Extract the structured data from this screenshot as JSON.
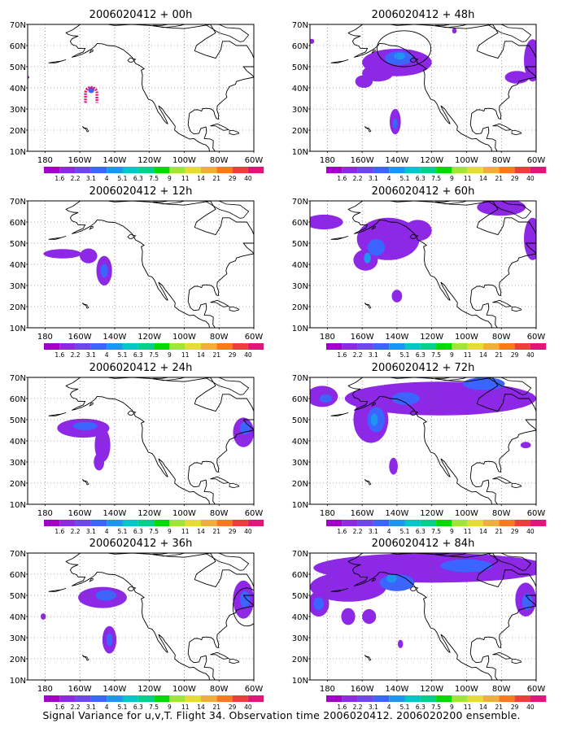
{
  "caption": "Signal Variance for u,v,T. Flight 34. Observation time 2006020412. 2006020200 ensemble.",
  "chart_data": {
    "type": "heatmap",
    "x_ticks": [
      "180",
      "160W",
      "140W",
      "120W",
      "100W",
      "80W",
      "60W"
    ],
    "y_ticks": [
      "10N",
      "20N",
      "30N",
      "40N",
      "50N",
      "60N",
      "70N"
    ],
    "xlim": [
      -190,
      -60
    ],
    "ylim": [
      10,
      70
    ],
    "grid": true,
    "legend_levels": [
      "1.6",
      "2.2",
      "3.1",
      "4",
      "5.1",
      "6.3",
      "7.5",
      "9",
      "11",
      "14",
      "21",
      "29",
      "40"
    ],
    "legend_colors": [
      "#a000c8",
      "#8c28e6",
      "#6e46f0",
      "#3c64ff",
      "#1e96f0",
      "#00c8c8",
      "#00d28c",
      "#00dc00",
      "#a0e632",
      "#e6dc32",
      "#f0af3c",
      "#fa7820",
      "#f03c3c",
      "#e6147a"
    ],
    "panels": [
      {
        "title": "2006020412 + 00h",
        "blobs": [
          {
            "lon": -190.5,
            "lat": 45,
            "rlon": 1.5,
            "rlat": 0.8,
            "level": 1
          },
          {
            "lon": -153.5,
            "lat": 39,
            "rlon": 1.8,
            "rlat": 1.5,
            "level": 3
          }
        ],
        "marks": [
          {
            "type": "ring",
            "lon": -153.5,
            "lat": 36,
            "color": "#e6147a"
          }
        ]
      },
      {
        "title": "2006020412 + 48h",
        "blobs": [
          {
            "lon": -140,
            "lat": 52,
            "rlon": 20,
            "rlat": 6.5,
            "level": 1
          },
          {
            "lon": -151,
            "lat": 47,
            "rlon": 9,
            "rlat": 4,
            "level": 1
          },
          {
            "lon": -159,
            "lat": 43,
            "rlon": 5,
            "rlat": 3,
            "level": 1
          },
          {
            "lon": -139,
            "lat": 54,
            "rlon": 8,
            "rlat": 3.3,
            "level": 3
          },
          {
            "lon": -138.5,
            "lat": 55,
            "rlon": 3.2,
            "rlat": 1.6,
            "level": 4
          },
          {
            "lon": -141,
            "lat": 24,
            "rlon": 3.2,
            "rlat": 6,
            "level": 1
          },
          {
            "lon": -141,
            "lat": 23,
            "rlon": 1.5,
            "rlat": 2.5,
            "level": 3
          },
          {
            "lon": -62,
            "lat": 53,
            "rlon": 5,
            "rlat": 10,
            "level": 1
          },
          {
            "lon": -71,
            "lat": 45,
            "rlon": 7,
            "rlat": 3,
            "level": 1
          },
          {
            "lon": -189,
            "lat": 62,
            "rlon": 1.5,
            "rlat": 1.2,
            "level": 1
          },
          {
            "lon": -107,
            "lat": 67,
            "rlon": 1.3,
            "rlat": 1.3,
            "level": 1
          }
        ],
        "marks": [
          {
            "type": "ellipse",
            "lon": -136,
            "lat": 58.5,
            "rlon": 15.5,
            "rlat": 8.5
          }
        ]
      },
      {
        "title": "2006020412 + 12h",
        "blobs": [
          {
            "lon": -170,
            "lat": 45,
            "rlon": 11,
            "rlat": 2.2,
            "level": 1
          },
          {
            "lon": -155,
            "lat": 44,
            "rlon": 5,
            "rlat": 3.5,
            "level": 1
          },
          {
            "lon": -146,
            "lat": 37,
            "rlon": 4.5,
            "rlat": 7,
            "level": 1
          },
          {
            "lon": -146,
            "lat": 37,
            "rlon": 2.2,
            "rlat": 3.2,
            "level": 3
          }
        ],
        "marks": []
      },
      {
        "title": "2006020412 + 60h",
        "blobs": [
          {
            "lon": -182,
            "lat": 60,
            "rlon": 11,
            "rlat": 3.5,
            "level": 1
          },
          {
            "lon": -145,
            "lat": 52,
            "rlon": 18,
            "rlat": 10,
            "level": 1
          },
          {
            "lon": -158,
            "lat": 42,
            "rlon": 7,
            "rlat": 5,
            "level": 1
          },
          {
            "lon": -128,
            "lat": 56,
            "rlon": 8,
            "rlat": 5,
            "level": 1
          },
          {
            "lon": -152,
            "lat": 48,
            "rlon": 5,
            "rlat": 4,
            "level": 3
          },
          {
            "lon": -157,
            "lat": 43,
            "rlon": 2,
            "rlat": 2.5,
            "level": 4
          },
          {
            "lon": -140,
            "lat": 25,
            "rlon": 3,
            "rlat": 3,
            "level": 1
          },
          {
            "lon": -80,
            "lat": 67,
            "rlon": 14,
            "rlat": 4,
            "level": 1
          },
          {
            "lon": -62,
            "lat": 52,
            "rlon": 5,
            "rlat": 10,
            "level": 1
          }
        ],
        "marks": []
      },
      {
        "title": "2006020412 + 24h",
        "blobs": [
          {
            "lon": -158,
            "lat": 46,
            "rlon": 15,
            "rlat": 4.5,
            "level": 1
          },
          {
            "lon": -147,
            "lat": 38,
            "rlon": 4.5,
            "rlat": 8,
            "level": 1
          },
          {
            "lon": -149,
            "lat": 30,
            "rlon": 3,
            "rlat": 4,
            "level": 1
          },
          {
            "lon": -157,
            "lat": 47,
            "rlon": 7,
            "rlat": 2,
            "level": 3
          },
          {
            "lon": -66,
            "lat": 44,
            "rlon": 6,
            "rlat": 7,
            "level": 1
          },
          {
            "lon": -65,
            "lat": 46,
            "rlon": 3,
            "rlat": 3,
            "level": 3
          }
        ],
        "marks": []
      },
      {
        "title": "2006020412 + 72h",
        "blobs": [
          {
            "lon": -183,
            "lat": 61,
            "rlon": 9,
            "rlat": 5,
            "level": 1
          },
          {
            "lon": -181,
            "lat": 60,
            "rlon": 3.5,
            "rlat": 2,
            "level": 3
          },
          {
            "lon": -115,
            "lat": 60,
            "rlon": 55,
            "rlat": 8,
            "level": 1
          },
          {
            "lon": -155,
            "lat": 50,
            "rlon": 10,
            "rlat": 11,
            "level": 1
          },
          {
            "lon": -152,
            "lat": 50,
            "rlon": 5,
            "rlat": 6,
            "level": 3
          },
          {
            "lon": -153,
            "lat": 50,
            "rlon": 2,
            "rlat": 3,
            "level": 4
          },
          {
            "lon": -135,
            "lat": 60,
            "rlon": 8,
            "rlat": 3,
            "level": 3
          },
          {
            "lon": -90,
            "lat": 67,
            "rlon": 12,
            "rlat": 3,
            "level": 3
          },
          {
            "lon": -142,
            "lat": 28,
            "rlon": 2.5,
            "rlat": 4,
            "level": 1
          },
          {
            "lon": -66,
            "lat": 38,
            "rlon": 3,
            "rlat": 1.5,
            "level": 1
          }
        ],
        "marks": []
      },
      {
        "title": "2006020412 + 36h",
        "blobs": [
          {
            "lon": -147,
            "lat": 49,
            "rlon": 14,
            "rlat": 5,
            "level": 1
          },
          {
            "lon": -145,
            "lat": 50,
            "rlon": 6,
            "rlat": 2.5,
            "level": 3
          },
          {
            "lon": -143,
            "lat": 29,
            "rlon": 4,
            "rlat": 6.5,
            "level": 1
          },
          {
            "lon": -143,
            "lat": 29,
            "rlon": 1.8,
            "rlat": 3,
            "level": 3
          },
          {
            "lon": -181,
            "lat": 40,
            "rlon": 1.5,
            "rlat": 1.5,
            "level": 1
          },
          {
            "lon": -66,
            "lat": 48,
            "rlon": 6,
            "rlat": 9,
            "level": 1
          },
          {
            "lon": -65,
            "lat": 48,
            "rlon": 3,
            "rlat": 4,
            "level": 3
          }
        ],
        "marks": [
          {
            "type": "ellipse",
            "lon": -64,
            "lat": 44.5,
            "rlon": 8,
            "rlat": 9
          }
        ]
      },
      {
        "title": "2006020412 + 84h",
        "blobs": [
          {
            "lon": -120,
            "lat": 63,
            "rlon": 68,
            "rlat": 7,
            "level": 1
          },
          {
            "lon": -168,
            "lat": 54,
            "rlon": 22,
            "rlat": 7,
            "level": 1
          },
          {
            "lon": -185,
            "lat": 46,
            "rlon": 6,
            "rlat": 6,
            "level": 1
          },
          {
            "lon": -185,
            "lat": 46,
            "rlon": 3,
            "rlat": 3,
            "level": 3
          },
          {
            "lon": -168,
            "lat": 40,
            "rlon": 4,
            "rlat": 4,
            "level": 1
          },
          {
            "lon": -156,
            "lat": 40,
            "rlon": 4,
            "rlat": 3.5,
            "level": 1
          },
          {
            "lon": -140,
            "lat": 56,
            "rlon": 10,
            "rlat": 4,
            "level": 3
          },
          {
            "lon": -143,
            "lat": 58,
            "rlon": 3,
            "rlat": 2,
            "level": 4
          },
          {
            "lon": -100,
            "lat": 64,
            "rlon": 15,
            "rlat": 3,
            "level": 3
          },
          {
            "lon": -66,
            "lat": 48,
            "rlon": 6,
            "rlat": 8,
            "level": 1
          },
          {
            "lon": -65,
            "lat": 47,
            "rlon": 3,
            "rlat": 4,
            "level": 3
          },
          {
            "lon": -138,
            "lat": 27,
            "rlon": 1.5,
            "rlat": 2,
            "level": 1
          }
        ],
        "marks": []
      }
    ]
  }
}
